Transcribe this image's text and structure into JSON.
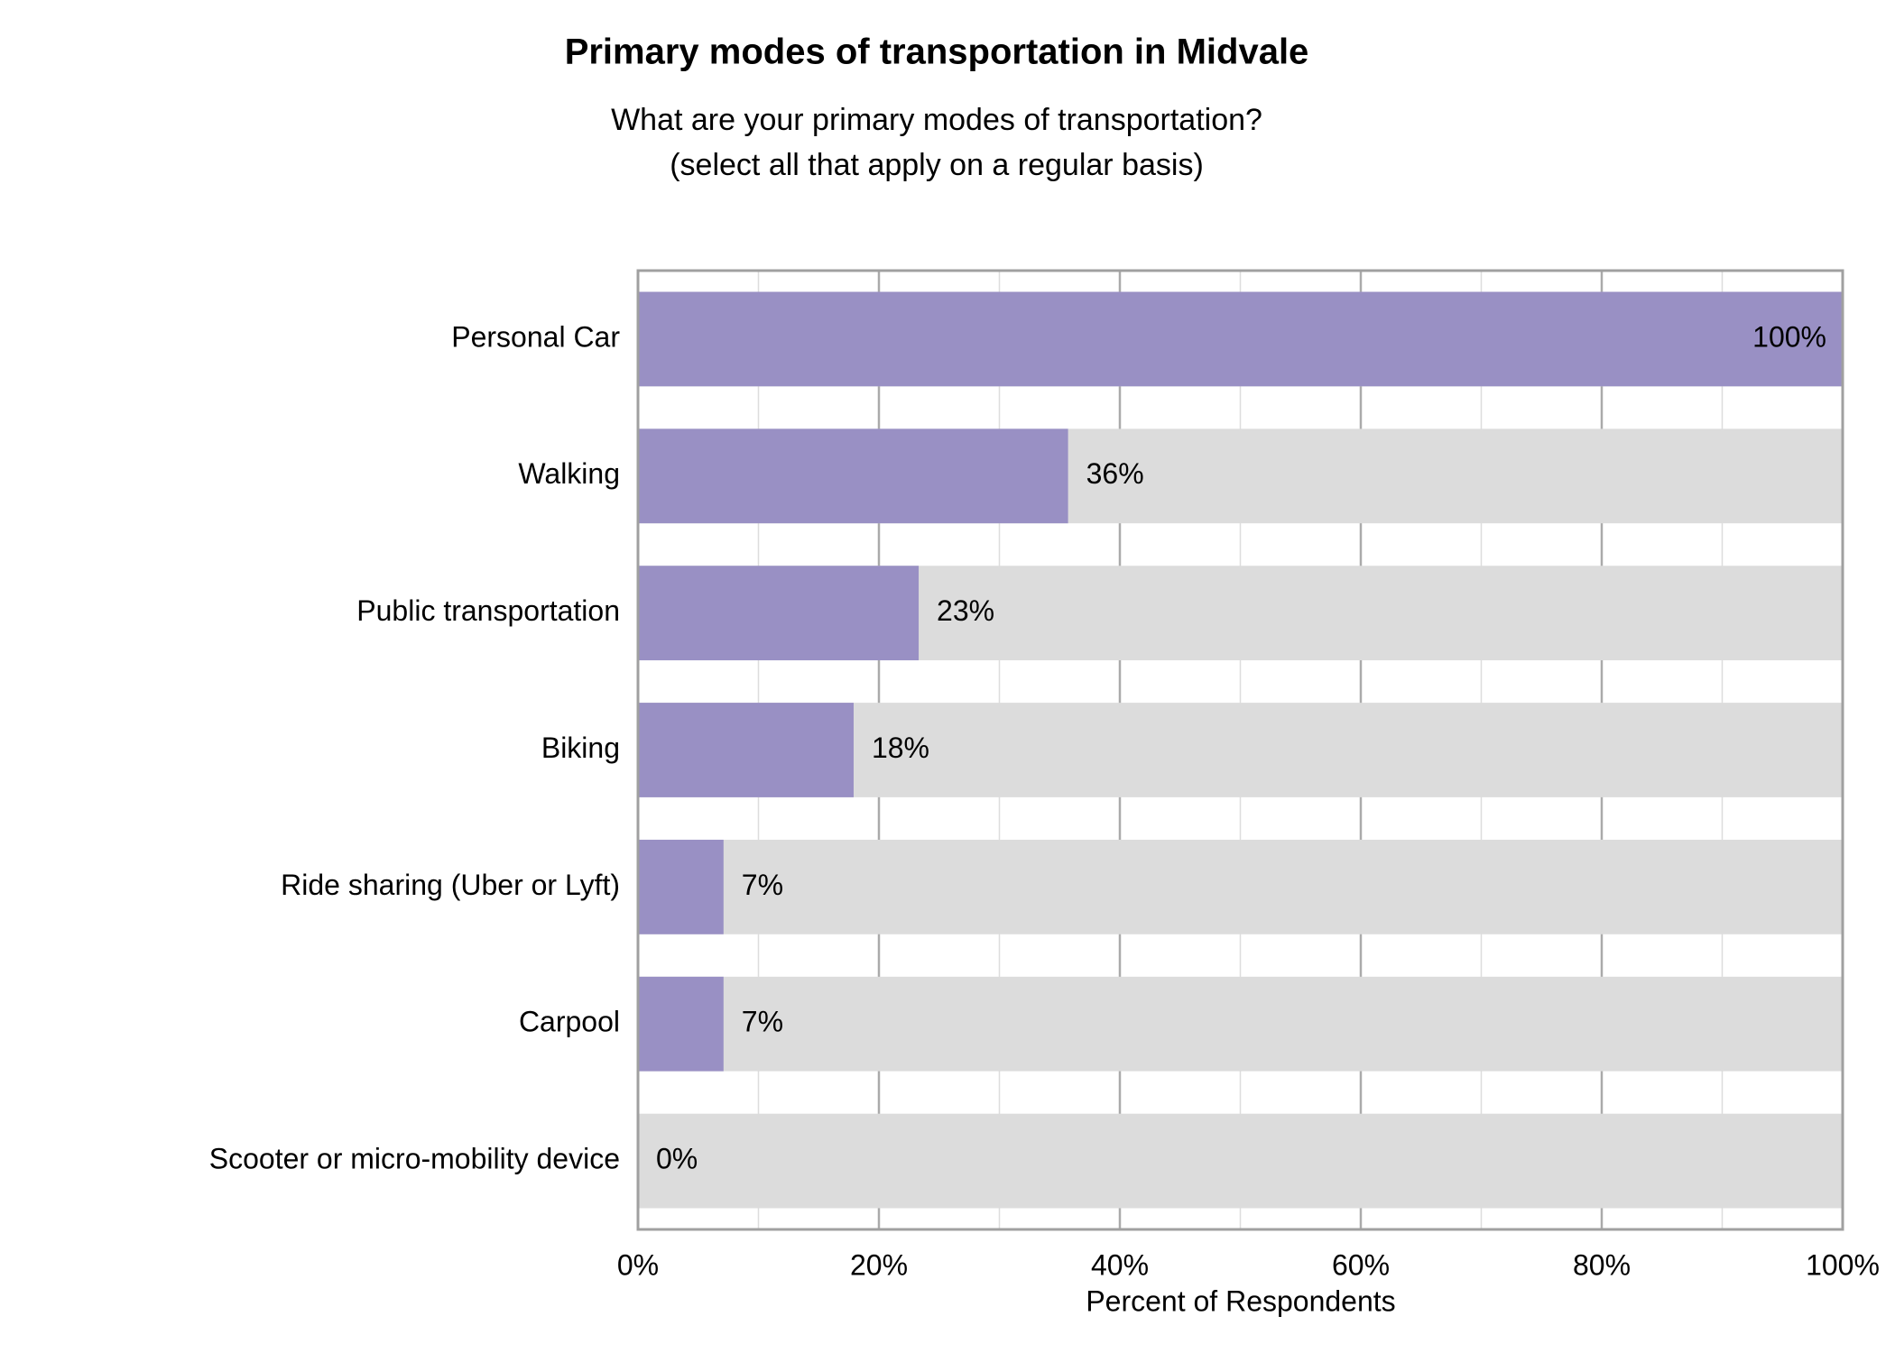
{
  "chart_data": {
    "type": "bar",
    "orientation": "horizontal",
    "title": "Primary modes of transportation in Midvale",
    "subtitle": [
      "What are your primary modes of transportation?",
      "(select all that apply on a regular basis)"
    ],
    "x_label": "Percent of Respondents",
    "categories": [
      "Personal Car",
      "Walking",
      "Public transportation",
      "Biking",
      "Ride sharing (Uber or Lyft)",
      "Carpool",
      "Scooter or micro-mobility device"
    ],
    "values": [
      100,
      35.7,
      23.3,
      17.9,
      7.1,
      7.1,
      0
    ],
    "value_labels": [
      "100%",
      "36%",
      "23%",
      "18%",
      "7%",
      "7%",
      "0%"
    ],
    "color": "#9990c4",
    "track_color": "#dcdcdc",
    "xlim": [
      0,
      100
    ],
    "xticks": [
      {
        "value": 0,
        "label": "0%"
      },
      {
        "value": 20,
        "label": "20%"
      },
      {
        "value": 40,
        "label": "40%"
      },
      {
        "value": 60,
        "label": "60%"
      },
      {
        "value": 80,
        "label": "80%"
      },
      {
        "value": 100,
        "label": "100%"
      }
    ],
    "minor_xticks": [
      10,
      30,
      50,
      70,
      90
    ],
    "grid": true
  }
}
